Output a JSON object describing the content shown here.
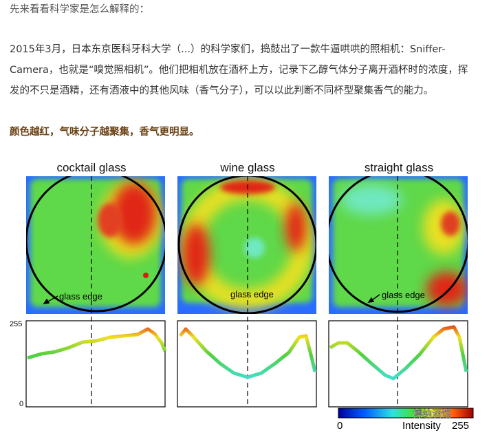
{
  "intro": "先来看看科学家是怎么解释的：",
  "paragraph_lines": [
    "2015年3月，日本东京医科牙科大学（...）的科学家们，捣鼓出了一款牛逼哄哄的照相机：Sniffer-",
    "Camera，也就是“嗅觉照相机”。他们把相机放在酒杯上方，记录下乙醇气体分子离开酒杯时的浓度，挥",
    "发的不只是酒精，还有酒液中的其他风味（香气分子），可以以此判断不同杯型聚集香气的能力。"
  ],
  "highlight": "颜色越红，气味分子越聚集，香气更明显。",
  "figure": {
    "panels": [
      {
        "title": "cocktail glass",
        "edge_label": "glass edge"
      },
      {
        "title": "wine glass",
        "edge_label": "glass edge"
      },
      {
        "title": "straight glass",
        "edge_label": "glass edge"
      }
    ],
    "axis_top": "255",
    "axis_bottom": "0",
    "colorbar": {
      "min": "0",
      "label": "Intensity",
      "max": "255"
    },
    "watermark": "博纳酒馆"
  }
}
